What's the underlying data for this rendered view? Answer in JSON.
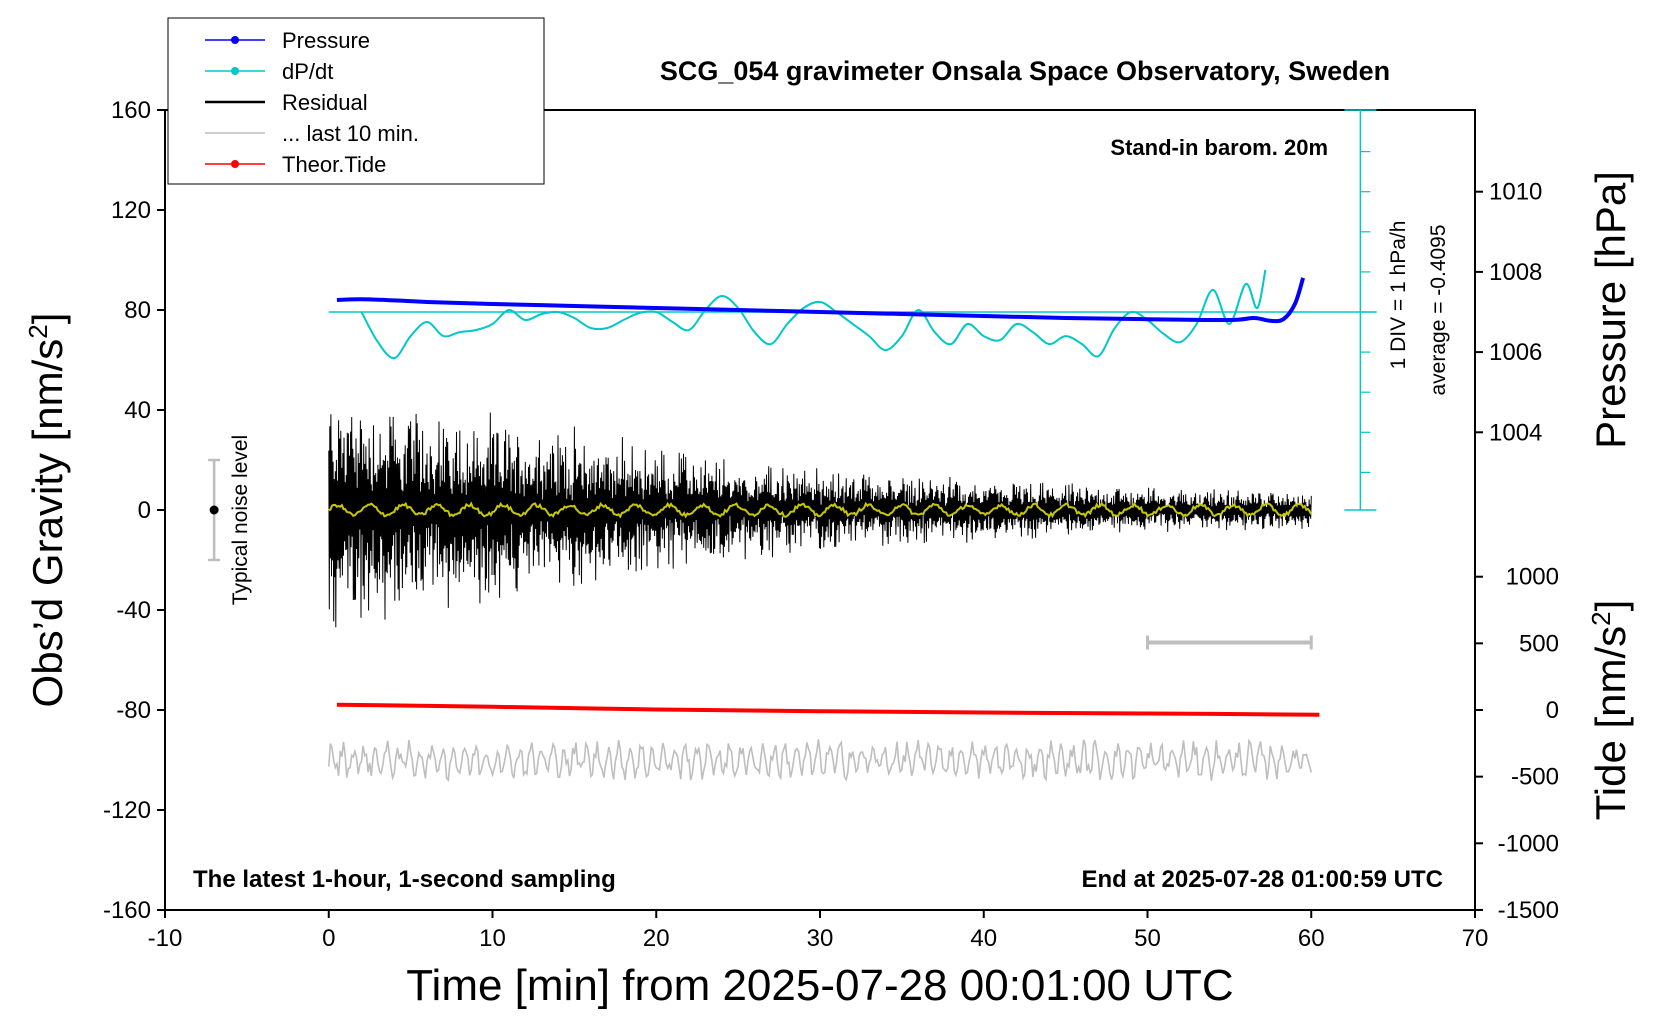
{
  "chart_data": {
    "type": "line",
    "title": "SCG_054 gravimeter Onsala Space Observatory, Sweden",
    "xlabel": "Time [min] from 2025-07-28 00:01:00 UTC",
    "ylabel_left_main": "Obs’d Gravity [nm/s",
    "ylabel_left_sup": "2",
    "ylabel_left_end": "]",
    "ylabel_right_top": "Pressure [hPa]",
    "ylabel_right_bottom_main": "Tide [nm/s",
    "ylabel_right_bottom_sup": "2",
    "ylabel_right_bottom_end": "]",
    "xlim": [
      -10,
      70
    ],
    "ylim": [
      -160,
      160
    ],
    "x_ticks": [
      "-10",
      "0",
      "10",
      "20",
      "30",
      "40",
      "50",
      "60",
      "70"
    ],
    "y_ticks_left": [
      "160",
      "120",
      "80",
      "40",
      "0",
      "-40",
      "-80",
      "-120",
      "-160"
    ],
    "y_ticks_pressure": [
      "1010",
      "1008",
      "1006",
      "1004"
    ],
    "y_ticks_tide": [
      "1000",
      "500",
      "0",
      "-500",
      "-1000",
      "-1500"
    ],
    "annotations": {
      "standin": "Stand-in barom. 20m",
      "div": "1 DIV = 1 hPa/h",
      "average": "average = -0.4095",
      "noise": "Typical noise level",
      "latest": "The latest 1-hour, 1-second sampling",
      "end": "End at 2025-07-28 01:00:59 UTC"
    },
    "legend": [
      {
        "label": "Pressure",
        "color": "#0000ff",
        "marker": true
      },
      {
        "label": "dP/dt",
        "color": "#00c8c8",
        "marker": true
      },
      {
        "label": "Residual",
        "color": "#000000",
        "marker": false
      },
      {
        "label": "... last 10 min.",
        "color": "#bebebe",
        "marker": false
      },
      {
        "label": "Theor.Tide",
        "color": "#ff0000",
        "marker": true
      }
    ],
    "series": [
      {
        "name": "Pressure",
        "color": "#0000ff",
        "x": [
          0.5,
          2,
          4,
          6,
          10,
          15,
          20,
          25,
          30,
          35,
          40,
          45,
          50,
          55,
          56.5,
          57.5,
          58.3,
          59,
          59.5
        ],
        "y": [
          1007.3,
          1007.32,
          1007.29,
          1007.25,
          1007.2,
          1007.15,
          1007.1,
          1007.05,
          1007.0,
          1006.95,
          1006.9,
          1006.85,
          1006.82,
          1006.8,
          1006.85,
          1006.78,
          1006.82,
          1007.2,
          1007.85
        ]
      },
      {
        "name": "dP/dt",
        "color": "#00c8c8",
        "x": [
          2,
          3,
          4,
          5,
          6,
          7,
          8,
          9,
          10,
          11,
          12,
          13,
          14,
          15,
          16,
          17,
          18,
          19,
          20,
          21,
          22,
          23,
          24,
          25,
          26,
          27,
          28,
          29,
          30,
          31,
          32,
          33,
          34,
          35,
          36,
          37,
          38,
          39,
          40,
          41,
          42,
          43,
          44,
          45,
          46,
          47,
          48,
          49,
          50,
          51,
          52,
          53,
          54,
          55,
          56,
          56.7,
          57.2
        ],
        "y": [
          0,
          -0.75,
          -1.15,
          -0.6,
          -0.25,
          -0.6,
          -0.5,
          -0.45,
          -0.3,
          0.05,
          -0.2,
          -0.05,
          0,
          -0.15,
          -0.4,
          -0.4,
          -0.2,
          -0.02,
          0,
          -0.25,
          -0.45,
          0.05,
          0.4,
          0.1,
          -0.5,
          -0.8,
          -0.3,
          0.1,
          0.25,
          0,
          -0.3,
          -0.6,
          -0.95,
          -0.6,
          0.05,
          -0.5,
          -0.8,
          -0.3,
          -0.6,
          -0.7,
          -0.3,
          -0.5,
          -0.8,
          -0.6,
          -0.8,
          -1.1,
          -0.4,
          0,
          -0.2,
          -0.55,
          -0.75,
          -0.3,
          0.55,
          -0.3,
          0.7,
          0.1,
          1.05
        ]
      },
      {
        "name": "Theor.Tide",
        "color": "#ff0000",
        "x": [
          0.5,
          10,
          20,
          30,
          40,
          50,
          60.5
        ],
        "y": [
          40,
          24,
          4,
          -9,
          -19,
          -26,
          -35
        ]
      }
    ],
    "residual": {
      "name": "Residual",
      "color": "#000000",
      "x_range": [
        0,
        60
      ],
      "amplitude_envelope": {
        "x": [
          0,
          5,
          10,
          15,
          20,
          25,
          30,
          40,
          50,
          60
        ],
        "y": [
          55,
          45,
          40,
          35,
          28,
          22,
          18,
          13,
          10,
          8
        ]
      }
    },
    "residual_mean": {
      "name": "Residual mean",
      "color": "#c8c800",
      "x_range": [
        0,
        60
      ],
      "y": 0
    },
    "last10": {
      "name": "... last 10 min.",
      "color": "#bebebe",
      "x_range": [
        0,
        60
      ],
      "center": -100,
      "amplitude": 8,
      "bar_x": [
        50,
        60
      ],
      "bar_y": -53
    },
    "noise_bar": {
      "x": -7,
      "y": 0,
      "range": [
        -20,
        20
      ]
    },
    "pressure_axis": {
      "range": [
        1002,
        1012
      ]
    },
    "tide_axis": {
      "range": [
        -1500,
        1000
      ]
    },
    "dpdt_axis": {
      "zero_pressure": 1007,
      "div_ticks_x": 63
    }
  }
}
